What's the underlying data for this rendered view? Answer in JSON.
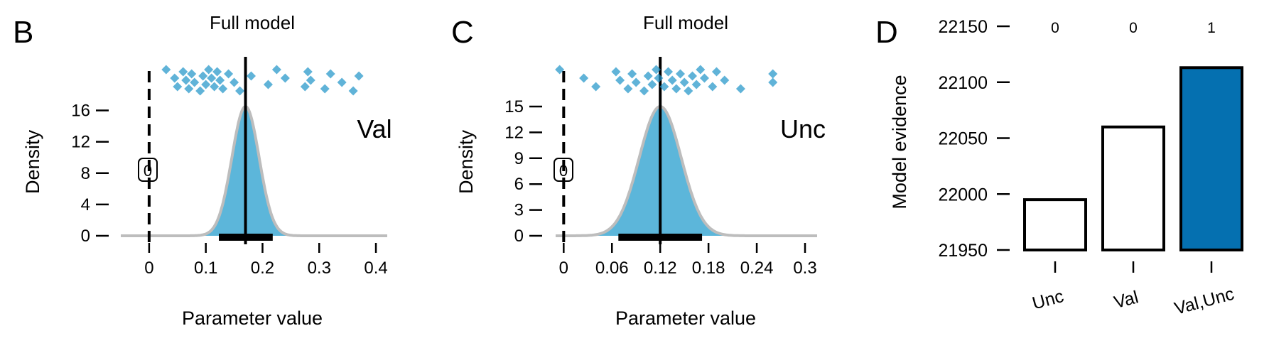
{
  "colors": {
    "density_fill": "#5cb6da",
    "density_outline": "#bdbdbd",
    "points": "#1d93c8",
    "bar_highlight": "#0570b0",
    "bar_plain": "#ffffff",
    "ink": "#000000"
  },
  "chart_data": [
    {
      "type": "area",
      "panel_letter": "B",
      "title": "Full model",
      "xlabel": "Parameter value",
      "ylabel": "Density",
      "annotation": "Val",
      "zero_box_label": "0",
      "xlim": [
        -0.05,
        0.42
      ],
      "ylim": [
        0,
        16.5
      ],
      "xticks": [
        0,
        0.1,
        0.2,
        0.3,
        0.4
      ],
      "xtick_labels": [
        "0",
        "0.1",
        "0.2",
        "0.3",
        "0.4"
      ],
      "yticks": [
        0,
        4,
        8,
        12,
        16
      ],
      "ytick_labels": [
        "0",
        "4",
        "8",
        "12",
        "16"
      ],
      "distribution": {
        "mean": 0.17,
        "sd": 0.024,
        "peak_density": 16.5
      },
      "interval": [
        0.123,
        0.218
      ],
      "point_estimate": 0.17,
      "reference_line": 0,
      "individual_estimates": [
        0.03,
        0.045,
        0.05,
        0.06,
        0.065,
        0.07,
        0.075,
        0.08,
        0.09,
        0.095,
        0.1,
        0.105,
        0.11,
        0.115,
        0.12,
        0.125,
        0.13,
        0.14,
        0.15,
        0.16,
        0.18,
        0.21,
        0.225,
        0.24,
        0.275,
        0.28,
        0.285,
        0.31,
        0.32,
        0.34,
        0.36,
        0.37
      ]
    },
    {
      "type": "area",
      "panel_letter": "C",
      "title": "Full model",
      "xlabel": "Parameter value",
      "ylabel": "Density",
      "annotation": "Unc",
      "zero_box_label": "0",
      "xlim": [
        -0.01,
        0.315
      ],
      "ylim": [
        0,
        15
      ],
      "xticks": [
        0,
        0.06,
        0.12,
        0.18,
        0.24,
        0.3
      ],
      "xtick_labels": [
        "0",
        "0.06",
        "0.12",
        "0.18",
        "0.24",
        "0.3"
      ],
      "yticks": [
        0,
        3,
        6,
        9,
        12,
        15
      ],
      "ytick_labels": [
        "0",
        "3",
        "6",
        "9",
        "12",
        "15"
      ],
      "distribution": {
        "mean": 0.12,
        "sd": 0.026,
        "peak_density": 15
      },
      "interval": [
        0.068,
        0.172
      ],
      "point_estimate": 0.12,
      "reference_line": 0,
      "individual_estimates": [
        -0.005,
        0.025,
        0.04,
        0.065,
        0.07,
        0.08,
        0.085,
        0.09,
        0.1,
        0.105,
        0.11,
        0.115,
        0.118,
        0.125,
        0.13,
        0.135,
        0.14,
        0.145,
        0.15,
        0.155,
        0.16,
        0.165,
        0.17,
        0.175,
        0.185,
        0.19,
        0.2,
        0.22,
        0.26,
        0.26
      ]
    },
    {
      "type": "bar",
      "panel_letter": "D",
      "ylabel": "Model evidence",
      "categories": [
        "Unc",
        "Val",
        "Val,Unc"
      ],
      "values": [
        21995,
        22060,
        22113
      ],
      "bar_labels": [
        "0",
        "0",
        "1"
      ],
      "highlighted": [
        false,
        false,
        true
      ],
      "ylim": [
        21950,
        22150
      ],
      "yticks": [
        21950,
        22000,
        22050,
        22100,
        22150
      ],
      "ytick_labels": [
        "21950",
        "22000",
        "22050",
        "22100",
        "22150"
      ]
    }
  ]
}
